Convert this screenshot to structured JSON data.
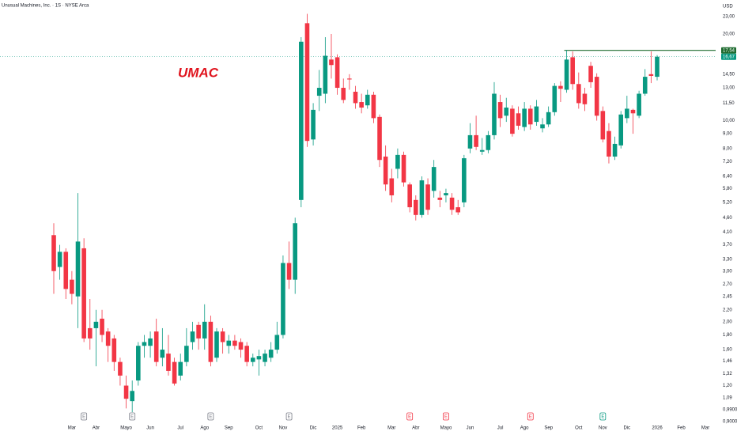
{
  "chart_data": {
    "type": "candlestick",
    "title": "Unusual Machines, Inc. · 1S · NYSE Arca",
    "annotation": "UMAC",
    "currency": "USD",
    "log_scale": true,
    "up_color": "#089981",
    "down_color": "#f23645",
    "categories": [
      null,
      null,
      null,
      "Mar",
      null,
      null,
      null,
      "Abr",
      null,
      null,
      null,
      null,
      "Mayo",
      null,
      null,
      null,
      "Jun",
      null,
      null,
      null,
      null,
      "Jul",
      null,
      null,
      null,
      "Ago",
      null,
      null,
      null,
      "Sep",
      null,
      null,
      null,
      null,
      "Oct",
      null,
      null,
      null,
      "Nov",
      null,
      null,
      null,
      null,
      "Dic",
      null,
      null,
      null,
      "2025",
      null,
      null,
      null,
      "Feb",
      null,
      null,
      null,
      null,
      "Mar",
      null,
      null,
      null,
      "Abr",
      null,
      null,
      null,
      null,
      "Mayo",
      null,
      null,
      null,
      "Jun",
      null,
      null,
      null,
      null,
      "Jul",
      null,
      null,
      null,
      "Ago",
      null,
      null,
      null,
      "Sep",
      null,
      null,
      null,
      null,
      "Oct",
      null,
      null,
      null,
      "Nov",
      null,
      null,
      null,
      "Dic",
      null,
      null,
      null,
      null,
      "2026",
      null,
      null,
      null,
      "Feb",
      null,
      null,
      null,
      "Mar",
      null
    ],
    "open": [
      4.0,
      3.1,
      3.5,
      2.8,
      2.45,
      3.6,
      1.9,
      1.9,
      2.05,
      1.85,
      1.75,
      1.45,
      1.2,
      1.06,
      1.25,
      1.65,
      1.65,
      1.85,
      1.5,
      1.55,
      1.45,
      1.3,
      1.45,
      1.7,
      1.95,
      1.75,
      2.0,
      1.5,
      1.85,
      1.65,
      1.72,
      1.7,
      1.65,
      1.45,
      1.48,
      1.45,
      1.5,
      1.6,
      1.8,
      3.2,
      2.8,
      5.3,
      21.8,
      8.6,
      12.2,
      12.4,
      16.3,
      16.6,
      13,
      14.0,
      12.6,
      11.6,
      11.3,
      12.3,
      10.3,
      7.5,
      6.3,
      6.8,
      7.6,
      6.0,
      5.3,
      4.7,
      6.0,
      5.7,
      5.4,
      5.5,
      5.4,
      5.0,
      5.2,
      8.0,
      8.9,
      7.8,
      7.9,
      8.9,
      11.6,
      10.4,
      11.0,
      10.6,
      9.5,
      11,
      9.9,
      9.4,
      9.7,
      10.7,
      13.2,
      12.8,
      16.6,
      13.4,
      12.4,
      15.5,
      14.2,
      10.8,
      9.2,
      7.5,
      8.2,
      10.2,
      10.9,
      10.4,
      12.4,
      14.5,
      14.2,
      null,
      null,
      null,
      null,
      null,
      null,
      null,
      null,
      null
    ],
    "high": [
      4.4,
      3.7,
      3.6,
      3.0,
      5.6,
      3.9,
      2.4,
      2.2,
      2.2,
      1.9,
      1.8,
      1.5,
      1.3,
      1.25,
      1.7,
      1.8,
      1.85,
      2.05,
      1.9,
      1.8,
      1.5,
      1.55,
      1.9,
      2.0,
      2.0,
      2.3,
      2.1,
      1.9,
      1.9,
      1.8,
      1.8,
      1.75,
      1.7,
      1.55,
      1.6,
      1.6,
      1.7,
      2.0,
      3.4,
      3.8,
      4.6,
      19.5,
      23.5,
      11.5,
      15,
      19.5,
      20,
      17,
      14,
      14.5,
      13.2,
      12.4,
      12.8,
      12.6,
      10.5,
      8.2,
      6.8,
      8.0,
      7.8,
      6.1,
      5.5,
      6.4,
      6.3,
      7.3,
      5.7,
      5.8,
      5.6,
      5.3,
      7.6,
      9.8,
      10.4,
      8.7,
      9.2,
      13.6,
      12.3,
      12,
      11.3,
      11.2,
      11.6,
      11.3,
      11.8,
      10.2,
      11.2,
      13.5,
      13.7,
      17.6,
      17.4,
      14.7,
      13.0,
      16,
      14.6,
      11.2,
      9.8,
      8.8,
      10.8,
      12.2,
      11.0,
      12.7,
      15.1,
      17.4,
      16.9,
      null,
      null,
      null,
      null,
      null,
      null,
      null,
      null,
      null
    ],
    "low": [
      2.5,
      2.8,
      2.4,
      2.3,
      1.9,
      1.7,
      1.6,
      1.4,
      1.7,
      1.45,
      1.35,
      1.2,
      1.0,
      0.97,
      1.2,
      1.5,
      1.5,
      1.4,
      1.4,
      1.3,
      1.2,
      1.25,
      1.4,
      1.6,
      1.6,
      1.6,
      1.4,
      1.45,
      1.55,
      1.55,
      1.6,
      1.5,
      1.4,
      1.4,
      1.3,
      1.4,
      1.45,
      1.55,
      1.75,
      2.6,
      2.5,
      5.0,
      8.1,
      8.2,
      10.8,
      11.5,
      14,
      12.3,
      11.5,
      12.8,
      11,
      10.6,
      11,
      9.8,
      6.9,
      5.7,
      5.2,
      6.3,
      5.9,
      4.8,
      4.5,
      4.6,
      4.7,
      5.4,
      5.0,
      5.2,
      4.7,
      4.7,
      5.0,
      7.7,
      7.9,
      7.6,
      7.7,
      8.6,
      9.5,
      9.9,
      8.8,
      9.3,
      9.2,
      9.3,
      9.6,
      9.1,
      9.5,
      10.4,
      11.6,
      12.5,
      12.8,
      11.0,
      10.8,
      13.0,
      10.0,
      8.4,
      7.1,
      7.3,
      8.0,
      9.8,
      9.0,
      10.2,
      12.2,
      13.5,
      13.8,
      null,
      null,
      null,
      null,
      null,
      null,
      null,
      null,
      null
    ],
    "close": [
      3.0,
      3.5,
      2.6,
      2.5,
      3.8,
      1.75,
      1.75,
      2.0,
      1.8,
      1.65,
      1.45,
      1.3,
      1.08,
      1.15,
      1.65,
      1.7,
      1.75,
      1.45,
      1.6,
      1.35,
      1.22,
      1.45,
      1.65,
      1.85,
      1.75,
      2.0,
      1.45,
      1.85,
      1.7,
      1.72,
      1.65,
      1.6,
      1.45,
      1.5,
      1.52,
      1.55,
      1.6,
      1.8,
      3.2,
      2.8,
      4.4,
      18.8,
      8.5,
      10.9,
      13.0,
      16.8,
      15.6,
      13,
      11.8,
      13.9,
      11.5,
      11.1,
      12.3,
      10.2,
      7.3,
      6.0,
      5.5,
      7.6,
      6.1,
      5.0,
      4.7,
      6.2,
      4.9,
      6.9,
      5.3,
      5.6,
      4.9,
      4.8,
      7.4,
      8.9,
      8.1,
      7.9,
      8.9,
      12.4,
      10.2,
      11.1,
      9.0,
      9.6,
      11,
      9.7,
      11.2,
      9.7,
      10.7,
      13.2,
      12.9,
      16.3,
      13.4,
      11.5,
      11.4,
      13.6,
      10.4,
      8.6,
      7.5,
      8.3,
      10.5,
      11.0,
      10.6,
      12.4,
      14.2,
      14.3,
      16.67,
      null,
      null,
      null,
      null,
      null,
      null,
      null,
      null,
      null
    ],
    "ylim": [
      0.9,
      26.25
    ],
    "yticks": [
      {
        "value": 23,
        "label": "23,00"
      },
      {
        "value": 20,
        "label": "20,00"
      },
      {
        "value": 14.5,
        "label": "14,50"
      },
      {
        "value": 13,
        "label": "13,00"
      },
      {
        "value": 11.5,
        "label": "11,50"
      },
      {
        "value": 10,
        "label": "10,00"
      },
      {
        "value": 9,
        "label": "9,00"
      },
      {
        "value": 8,
        "label": "8,00"
      },
      {
        "value": 7.2,
        "label": "7,20"
      },
      {
        "value": 6.4,
        "label": "6,40"
      },
      {
        "value": 5.8,
        "label": "5,80"
      },
      {
        "value": 5.2,
        "label": "5,20"
      },
      {
        "value": 4.6,
        "label": "4,60"
      },
      {
        "value": 4.1,
        "label": "4,10"
      },
      {
        "value": 3.7,
        "label": "3,70"
      },
      {
        "value": 3.3,
        "label": "3,30"
      },
      {
        "value": 3,
        "label": "3,00"
      },
      {
        "value": 2.7,
        "label": "2,70"
      },
      {
        "value": 2.45,
        "label": "2,45"
      },
      {
        "value": 2.2,
        "label": "2,20"
      },
      {
        "value": 2,
        "label": "2,00"
      },
      {
        "value": 1.8,
        "label": "1,80"
      },
      {
        "value": 1.6,
        "label": "1,60"
      },
      {
        "value": 1.46,
        "label": "1,46"
      },
      {
        "value": 1.32,
        "label": "1,32"
      },
      {
        "value": 1.2,
        "label": "1,20"
      },
      {
        "value": 1.09,
        "label": "1,09"
      },
      {
        "value": 0.99,
        "label": "0,9900"
      },
      {
        "value": 0.9,
        "label": "0,9000"
      }
    ],
    "price_lines": [
      {
        "value": 17.54,
        "label": "17,54",
        "color": "#1e6b2f",
        "from_candle": 85
      },
      {
        "value": 16.67,
        "label": "16,67",
        "color": "#089981",
        "from_candle": 0
      }
    ],
    "earnings": [
      {
        "candle": 5,
        "label": "E",
        "color": "#787b86"
      },
      {
        "candle": 13,
        "label": "E",
        "color": "#787b86"
      },
      {
        "candle": 26,
        "label": "E",
        "color": "#787b86"
      },
      {
        "candle": 39,
        "label": "E",
        "color": "#787b86"
      },
      {
        "candle": 59,
        "label": "E",
        "color": "#f23645"
      },
      {
        "candle": 65,
        "label": "E",
        "color": "#f23645"
      },
      {
        "candle": 79,
        "label": "E",
        "color": "#f23645"
      },
      {
        "candle": 91,
        "label": "E",
        "color": "#089981"
      }
    ]
  }
}
